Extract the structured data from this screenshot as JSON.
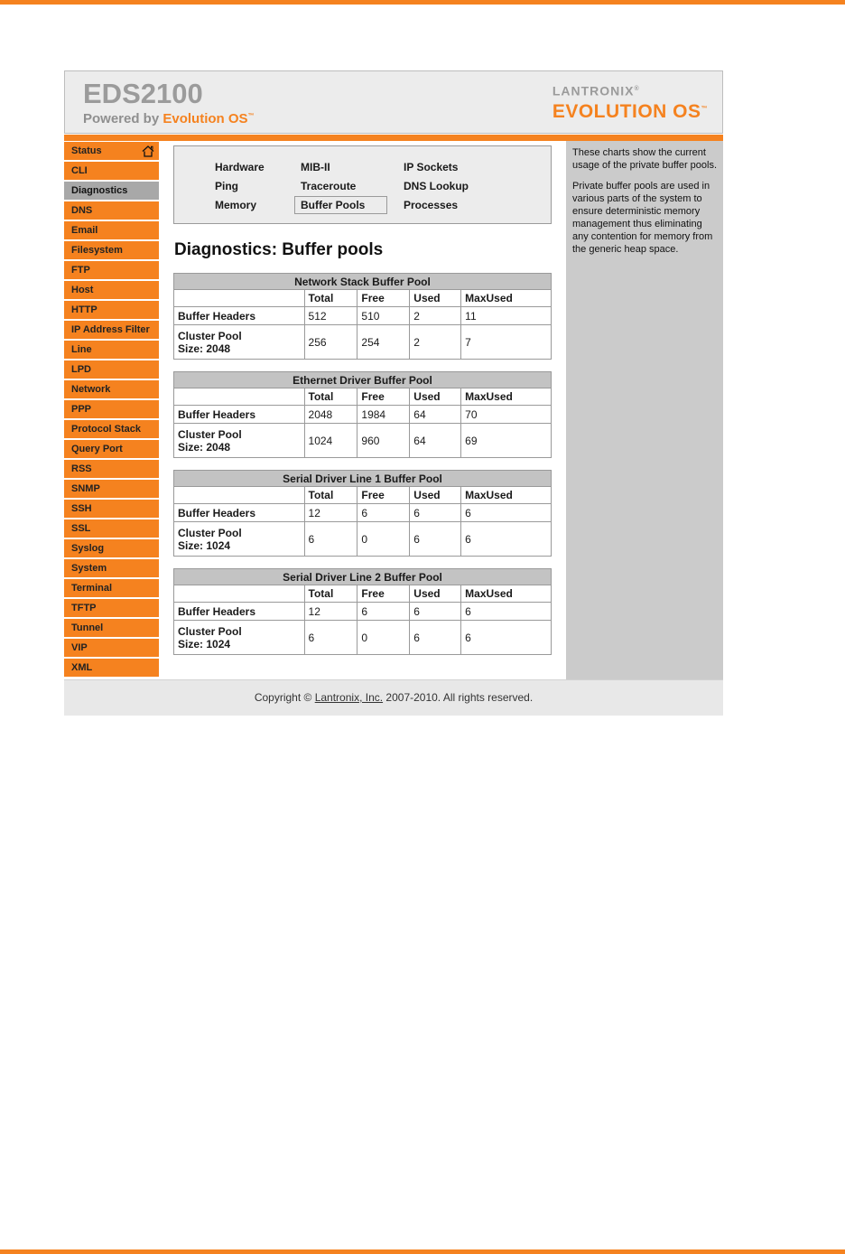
{
  "colors": {
    "accent_orange": "#F5821F",
    "selected_gray": "#A8A8A8",
    "panel_gray": "#CBCBCB",
    "header_gray": "#ECECEC"
  },
  "header": {
    "device_name": "EDS2100",
    "powered_prefix": "Powered by",
    "powered_brand": "Evolution OS",
    "powered_tm": "™",
    "logo_name": "LANTRONIX",
    "logo_reg": "®",
    "logo_product": "EVOLUTION OS",
    "logo_tm": "™"
  },
  "sidebar": {
    "items": [
      {
        "label": "Status",
        "selected": false,
        "home_icon": true
      },
      {
        "label": "CLI",
        "selected": false,
        "home_icon": false
      },
      {
        "label": "Diagnostics",
        "selected": true,
        "home_icon": false
      },
      {
        "label": "DNS",
        "selected": false,
        "home_icon": false
      },
      {
        "label": "Email",
        "selected": false,
        "home_icon": false
      },
      {
        "label": "Filesystem",
        "selected": false,
        "home_icon": false
      },
      {
        "label": "FTP",
        "selected": false,
        "home_icon": false
      },
      {
        "label": "Host",
        "selected": false,
        "home_icon": false
      },
      {
        "label": "HTTP",
        "selected": false,
        "home_icon": false
      },
      {
        "label": "IP Address Filter",
        "selected": false,
        "home_icon": false
      },
      {
        "label": "Line",
        "selected": false,
        "home_icon": false
      },
      {
        "label": "LPD",
        "selected": false,
        "home_icon": false
      },
      {
        "label": "Network",
        "selected": false,
        "home_icon": false
      },
      {
        "label": "PPP",
        "selected": false,
        "home_icon": false
      },
      {
        "label": "Protocol Stack",
        "selected": false,
        "home_icon": false
      },
      {
        "label": "Query Port",
        "selected": false,
        "home_icon": false
      },
      {
        "label": "RSS",
        "selected": false,
        "home_icon": false
      },
      {
        "label": "SNMP",
        "selected": false,
        "home_icon": false
      },
      {
        "label": "SSH",
        "selected": false,
        "home_icon": false
      },
      {
        "label": "SSL",
        "selected": false,
        "home_icon": false
      },
      {
        "label": "Syslog",
        "selected": false,
        "home_icon": false
      },
      {
        "label": "System",
        "selected": false,
        "home_icon": false
      },
      {
        "label": "Terminal",
        "selected": false,
        "home_icon": false
      },
      {
        "label": "TFTP",
        "selected": false,
        "home_icon": false
      },
      {
        "label": "Tunnel",
        "selected": false,
        "home_icon": false
      },
      {
        "label": "VIP",
        "selected": false,
        "home_icon": false
      },
      {
        "label": "XML",
        "selected": false,
        "home_icon": false
      }
    ]
  },
  "nav": {
    "rows": [
      [
        "Hardware",
        "MIB-II",
        "IP Sockets"
      ],
      [
        "Ping",
        "Traceroute",
        "DNS Lookup"
      ],
      [
        "Memory",
        "Buffer Pools",
        "Processes"
      ]
    ],
    "selected": "Buffer Pools"
  },
  "main": {
    "title": "Diagnostics: Buffer pools",
    "tables": [
      {
        "title": "Network Stack Buffer Pool",
        "columns": [
          "",
          "Total",
          "Free",
          "Used",
          "MaxUsed"
        ],
        "rows": [
          {
            "label_lines": [
              "Buffer Headers"
            ],
            "values": [
              "512",
              "510",
              "2",
              "11"
            ]
          },
          {
            "label_lines": [
              "Cluster Pool",
              "Size: 2048"
            ],
            "values": [
              "256",
              "254",
              "2",
              "7"
            ]
          }
        ]
      },
      {
        "title": "Ethernet Driver Buffer Pool",
        "columns": [
          "",
          "Total",
          "Free",
          "Used",
          "MaxUsed"
        ],
        "rows": [
          {
            "label_lines": [
              "Buffer Headers"
            ],
            "values": [
              "2048",
              "1984",
              "64",
              "70"
            ]
          },
          {
            "label_lines": [
              "Cluster Pool",
              "Size: 2048"
            ],
            "values": [
              "1024",
              "960",
              "64",
              "69"
            ]
          }
        ]
      },
      {
        "title": "Serial Driver Line 1 Buffer Pool",
        "columns": [
          "",
          "Total",
          "Free",
          "Used",
          "MaxUsed"
        ],
        "rows": [
          {
            "label_lines": [
              "Buffer Headers"
            ],
            "values": [
              "12",
              "6",
              "6",
              "6"
            ]
          },
          {
            "label_lines": [
              "Cluster Pool",
              "Size: 1024"
            ],
            "values": [
              "6",
              "0",
              "6",
              "6"
            ]
          }
        ]
      },
      {
        "title": "Serial Driver Line 2 Buffer Pool",
        "columns": [
          "",
          "Total",
          "Free",
          "Used",
          "MaxUsed"
        ],
        "rows": [
          {
            "label_lines": [
              "Buffer Headers"
            ],
            "values": [
              "12",
              "6",
              "6",
              "6"
            ]
          },
          {
            "label_lines": [
              "Cluster Pool",
              "Size: 1024"
            ],
            "values": [
              "6",
              "0",
              "6",
              "6"
            ]
          }
        ]
      }
    ]
  },
  "help": {
    "paragraphs": [
      "These charts show the current usage of the private buffer pools.",
      "Private buffer pools are used in various parts of the system to ensure deterministic memory management thus eliminating any contention for memory from the generic heap space."
    ]
  },
  "footer": {
    "copyright_prefix": "Copyright ©",
    "link_text": "Lantronix, Inc.",
    "copyright_suffix": "2007-2010. All rights reserved."
  }
}
